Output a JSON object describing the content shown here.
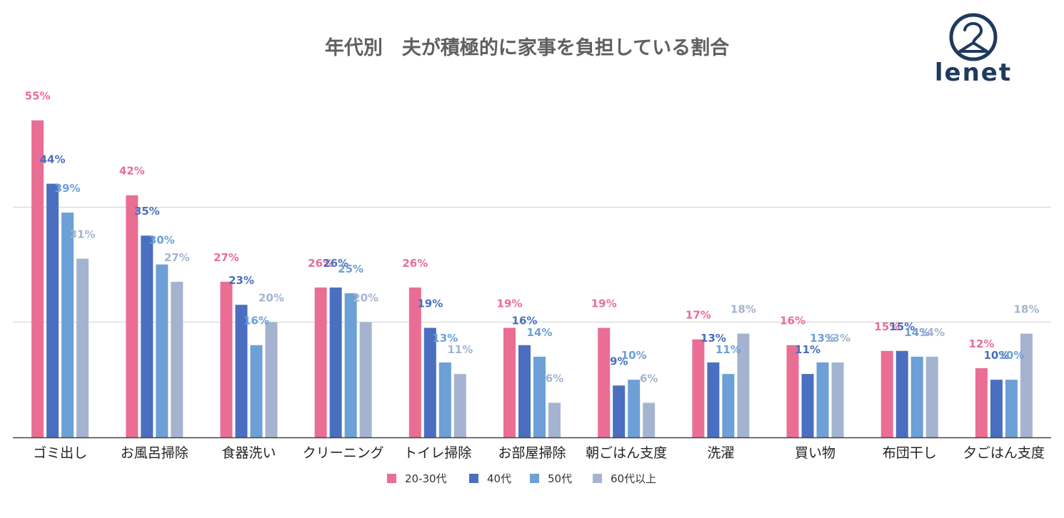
{
  "brand": {
    "name": "lenet"
  },
  "chart_data": {
    "type": "bar",
    "title": "年代別　夫が積極的に家事を負担している割合",
    "xlabel": "",
    "ylabel": "",
    "ylim": [
      0,
      63.5
    ],
    "gridlines": [
      20,
      40
    ],
    "legend_position": "bottom-center",
    "categories": [
      "ゴミ出し",
      "お風呂掃除",
      "食器洗い",
      "クリーニング",
      "トイレ掃除",
      "お部屋掃除",
      "朝ごはん支度",
      "洗濯",
      "買い物",
      "布団干し",
      "夕ごはん支度"
    ],
    "series": [
      {
        "name": "20-30代",
        "color": "#ea6e93",
        "values": [
          55,
          42,
          27,
          26,
          26,
          19,
          19,
          17,
          16,
          15,
          12
        ]
      },
      {
        "name": "40代",
        "color": "#4a6fc0",
        "values": [
          44,
          35,
          23,
          26,
          19,
          16,
          9,
          13,
          11,
          15,
          10
        ]
      },
      {
        "name": "50代",
        "color": "#6ca0d6",
        "values": [
          39,
          30,
          16,
          25,
          13,
          14,
          10,
          11,
          13,
          14,
          10
        ]
      },
      {
        "name": "60代以上",
        "color": "#a4b4d0",
        "values": [
          31,
          27,
          20,
          20,
          11,
          6,
          6,
          18,
          13,
          14,
          18
        ]
      }
    ],
    "value_suffix": "%"
  }
}
